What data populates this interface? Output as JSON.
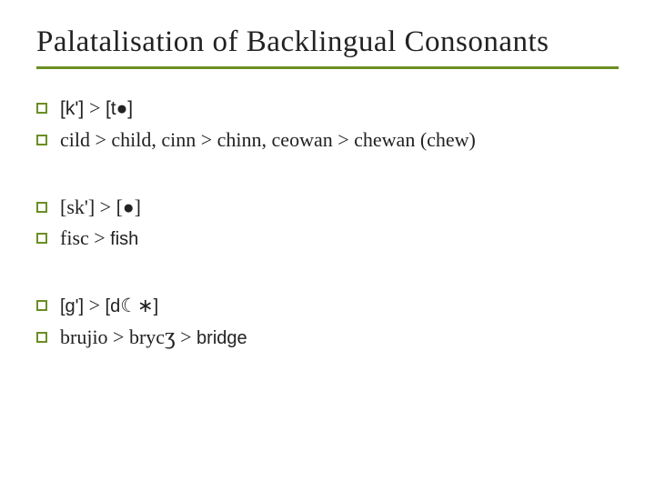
{
  "colors": {
    "accent": "#6b8e23",
    "text": "#222222",
    "background": "#ffffff"
  },
  "typography": {
    "title_fontsize": 33,
    "body_fontsize": 22,
    "family": "Garamond/serif"
  },
  "title": "Palatalisation of Backlingual Consonants",
  "groups": [
    {
      "lines": [
        {
          "a": "[k'] ",
          "b": "> ",
          "c": "[t",
          "d": "●",
          "e": "]"
        },
        {
          "a": "cild  > child, cinn > chinn, ceowan > chewan (chew)"
        }
      ]
    },
    {
      "lines": [
        {
          "a": "[sk'] > [",
          "b": "●",
          "c": "]"
        },
        {
          "a": "fisc > ",
          "b": "fish"
        }
      ]
    },
    {
      "lines": [
        {
          "a": "[g'] ",
          "b": "> ",
          "c": "[d",
          "d": "☾∗",
          "e": "]"
        },
        {
          "a": "brujio > bryc",
          "b": "ʒ",
          "c": " > ",
          "d": "bridge"
        }
      ]
    }
  ]
}
